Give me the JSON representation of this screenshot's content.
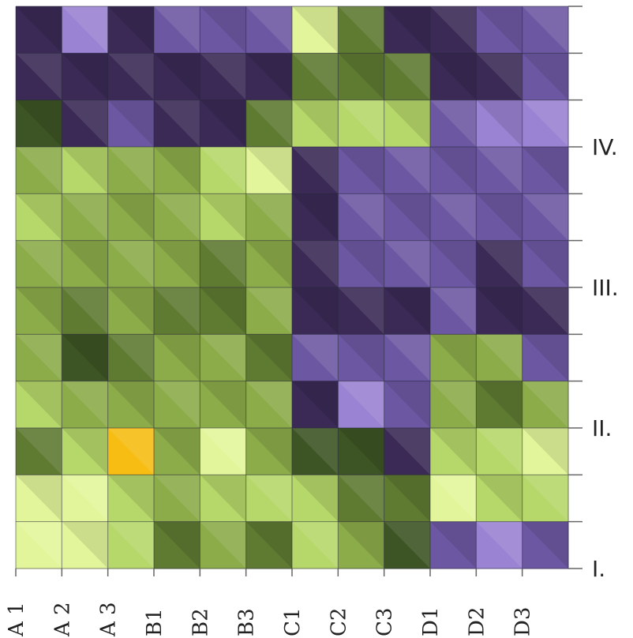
{
  "chart_data": {
    "type": "heatmap",
    "title": "",
    "xlabel": "",
    "ylabel": "",
    "grid": true,
    "x_categories": [
      "A 1",
      "A 2",
      "A 3",
      "B1",
      "B2",
      "B3",
      "C1",
      "C2",
      "C3",
      "D1",
      "D2",
      "D3"
    ],
    "y_labels": [
      {
        "label": "I.",
        "row": 0
      },
      {
        "label": "II.",
        "row": 3
      },
      {
        "label": "III.",
        "row": 6
      },
      {
        "label": "IV.",
        "row": 9
      }
    ],
    "class_colors": {
      "1": "#e2f59a",
      "2": "#b6d76a",
      "3": "#8cac4a",
      "4": "#5f7a31",
      "5": "#3d5424",
      "6": "#3a2a55",
      "7": "#6c58a2",
      "8": "#9a83d2",
      "9": "#f7bd12"
    },
    "rows_top_to_bottom": [
      [
        6,
        8,
        6,
        7,
        7,
        7,
        1,
        4,
        6,
        6,
        7,
        7
      ],
      [
        6,
        6,
        6,
        6,
        6,
        6,
        4,
        4,
        4,
        6,
        6,
        7
      ],
      [
        5,
        6,
        7,
        6,
        6,
        4,
        2,
        2,
        2,
        7,
        8,
        8
      ],
      [
        3,
        2,
        3,
        3,
        2,
        1,
        6,
        7,
        7,
        7,
        7,
        7
      ],
      [
        2,
        3,
        3,
        3,
        2,
        3,
        6,
        7,
        7,
        7,
        7,
        7
      ],
      [
        3,
        3,
        3,
        3,
        4,
        3,
        6,
        7,
        7,
        7,
        6,
        7
      ],
      [
        3,
        4,
        3,
        4,
        4,
        3,
        6,
        6,
        6,
        7,
        6,
        6
      ],
      [
        3,
        5,
        4,
        3,
        3,
        4,
        7,
        7,
        7,
        3,
        3,
        7
      ],
      [
        2,
        3,
        3,
        3,
        3,
        3,
        6,
        8,
        7,
        3,
        4,
        3
      ],
      [
        4,
        2,
        9,
        3,
        1,
        3,
        5,
        5,
        6,
        2,
        2,
        1
      ],
      [
        1,
        1,
        2,
        3,
        2,
        2,
        2,
        4,
        4,
        1,
        2,
        2
      ],
      [
        1,
        1,
        2,
        4,
        3,
        4,
        2,
        3,
        5,
        7,
        8,
        7
      ]
    ]
  }
}
